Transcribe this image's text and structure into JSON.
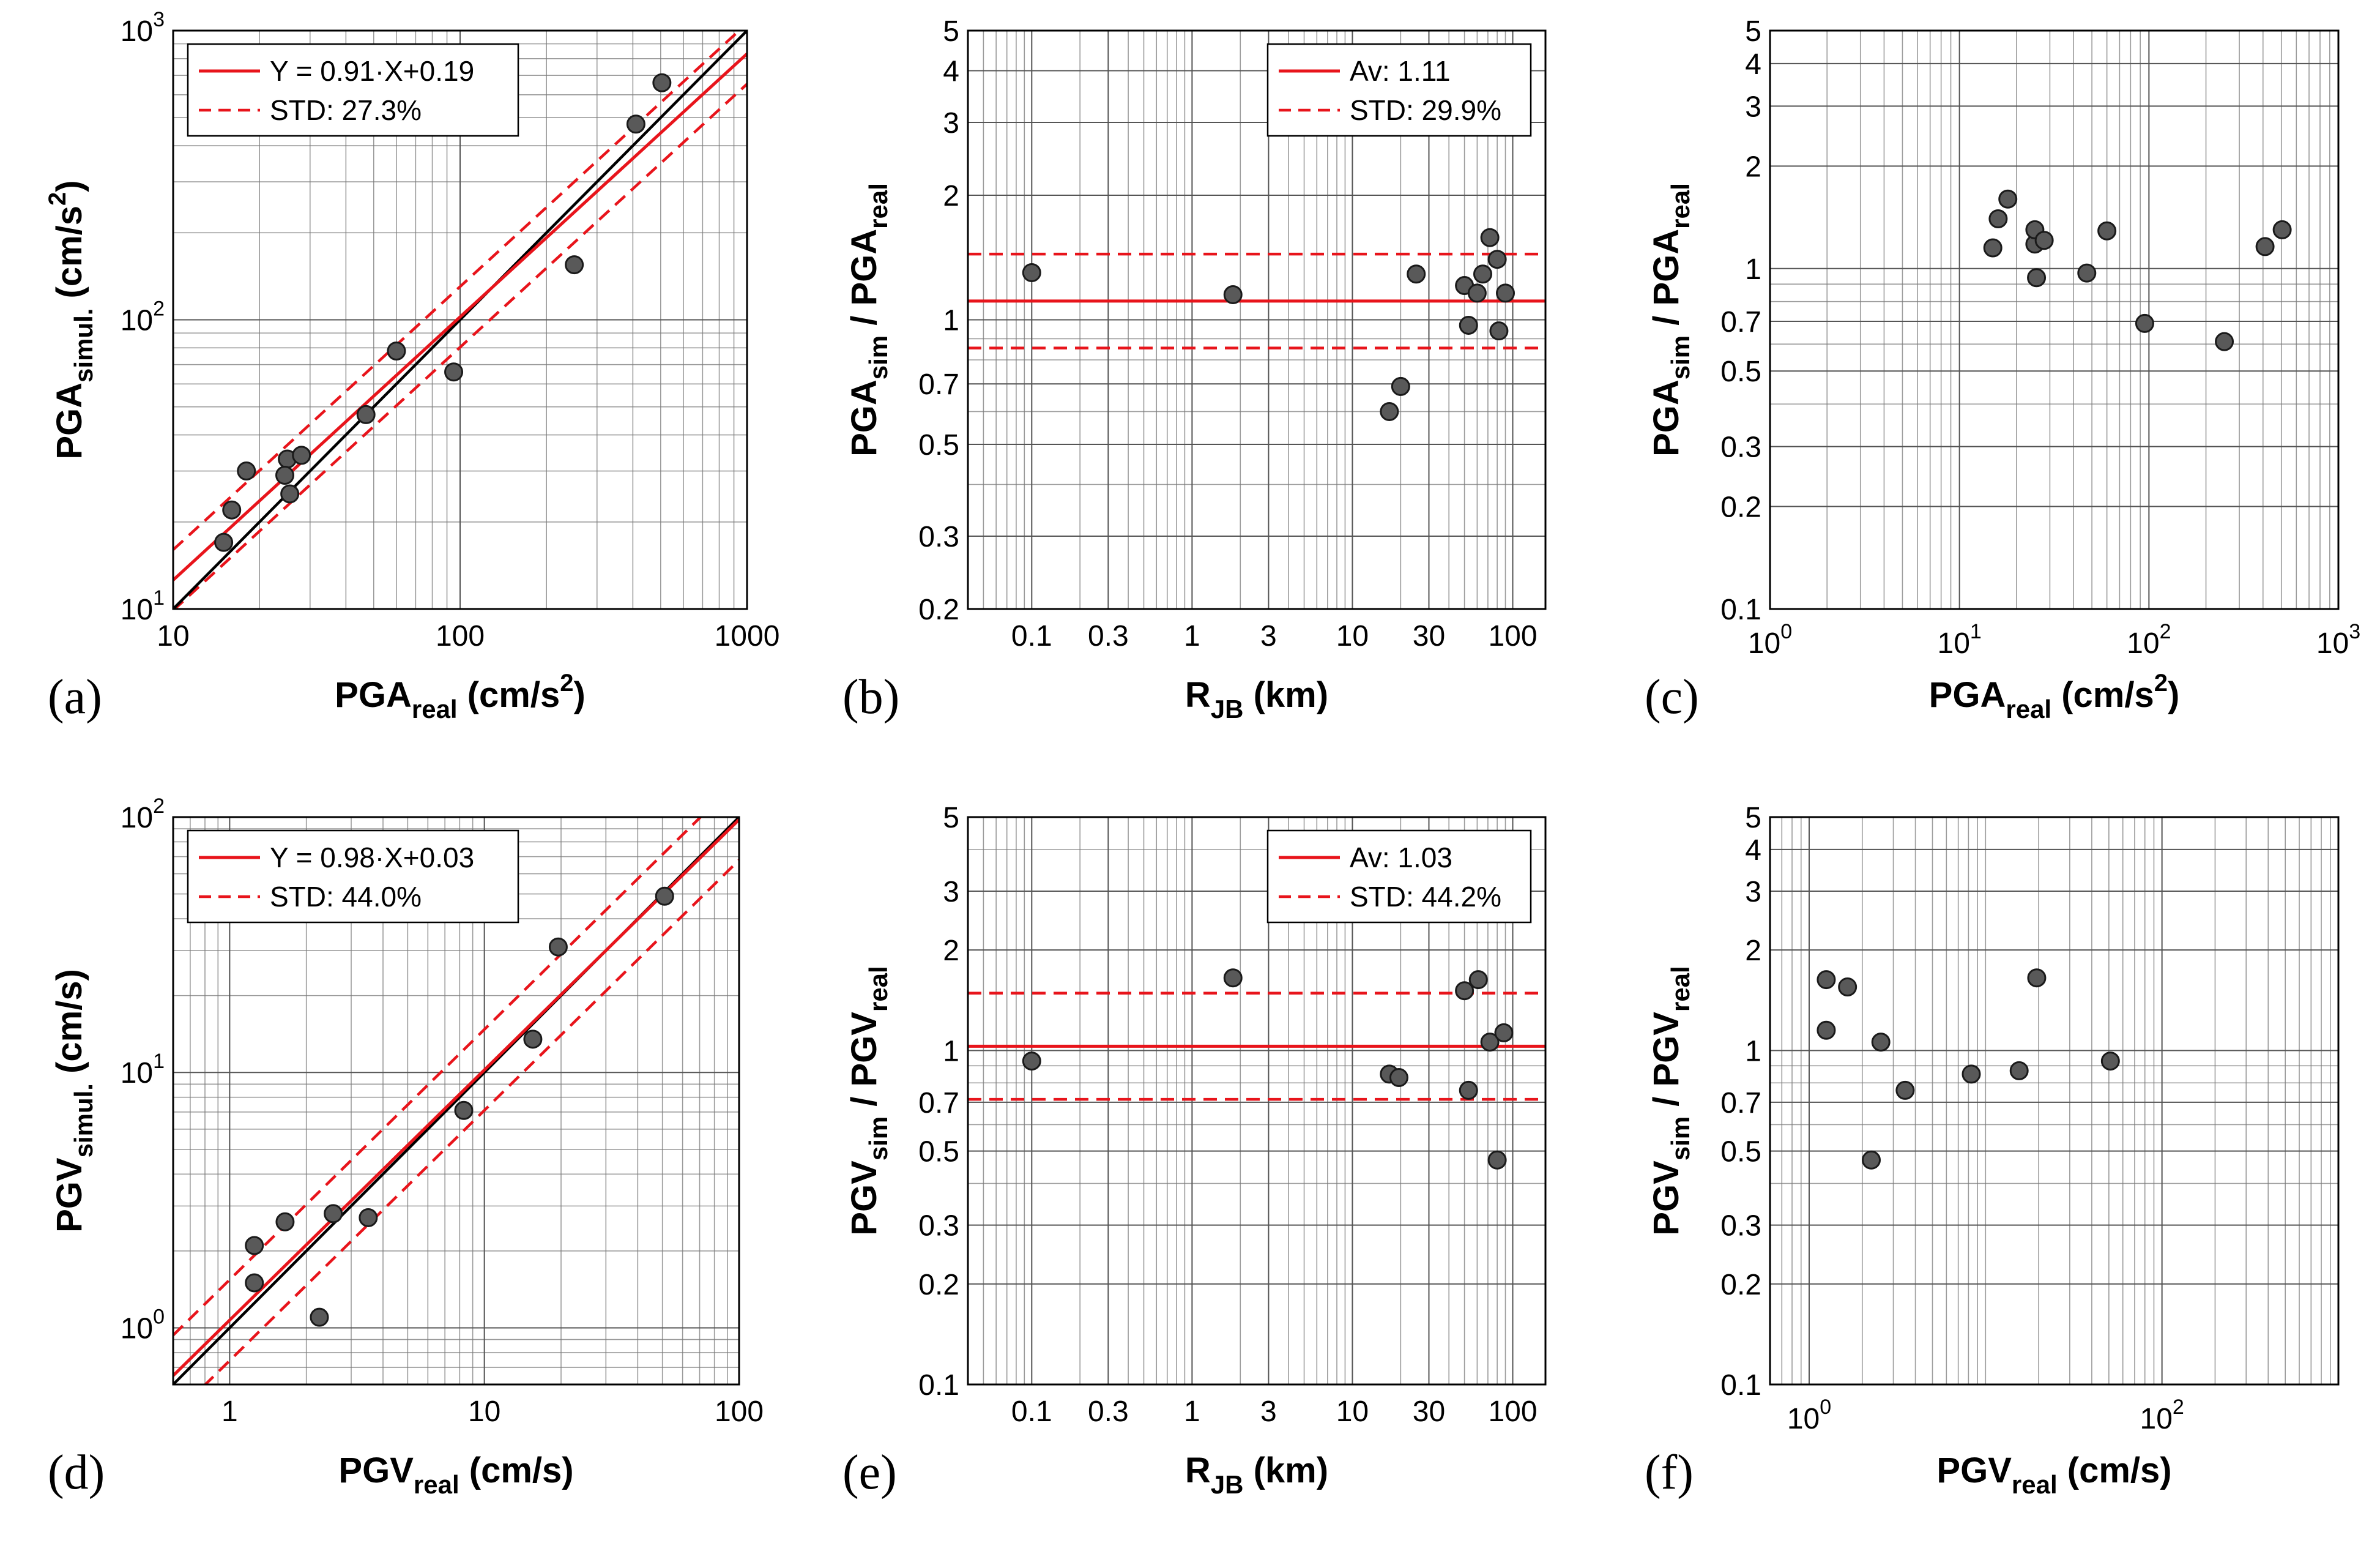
{
  "chart_data": [
    {
      "id": "a",
      "panel_label": "(a)",
      "type": "scatter",
      "mode": "fit",
      "x_scale": "log",
      "y_scale": "log",
      "xlim": [
        10,
        1000
      ],
      "ylim": [
        10,
        1000
      ],
      "x_ticks": [
        10,
        100,
        1000
      ],
      "x_tick_labels": [
        "10",
        "100",
        "1000"
      ],
      "y_ticks": [
        10,
        100,
        1000
      ],
      "y_tick_labels": [
        {
          "b": "10",
          "e": "1"
        },
        {
          "b": "10",
          "e": "2"
        },
        {
          "b": "10",
          "e": "3"
        }
      ],
      "xlabel": {
        "main": "PGA",
        "sub": "real",
        "rest": " (cm/s",
        "sup": "2",
        "end": ")"
      },
      "ylabel": {
        "main": "PGA",
        "sub": "simul.",
        "rest": "  (cm/s",
        "sup": "2",
        "end": ")"
      },
      "legend": {
        "position": "top-left",
        "fit": "Y = 0.91·X+0.19",
        "std": "STD: 27.3%"
      },
      "fit": {
        "a": 0.91,
        "b": 0.19,
        "std_factor": 1.273
      },
      "one_to_one": true,
      "points": [
        [
          15,
          17
        ],
        [
          16,
          22
        ],
        [
          18,
          30
        ],
        [
          25,
          33
        ],
        [
          24.5,
          29
        ],
        [
          25.5,
          25
        ],
        [
          28,
          34
        ],
        [
          47,
          47
        ],
        [
          60,
          78
        ],
        [
          95,
          66
        ],
        [
          250,
          155
        ],
        [
          410,
          475
        ],
        [
          505,
          660
        ]
      ]
    },
    {
      "id": "b",
      "panel_label": "(b)",
      "type": "scatter",
      "mode": "ratio",
      "x_scale": "log",
      "y_scale": "log",
      "xlim": [
        0.04,
        160
      ],
      "ylim": [
        0.2,
        5
      ],
      "x_ticks": [
        0.1,
        0.3,
        1,
        3,
        10,
        30,
        100
      ],
      "x_tick_labels": [
        "0.1",
        "0.3",
        "1",
        "3",
        "10",
        "30",
        "100"
      ],
      "y_ticks": [
        0.2,
        0.3,
        0.5,
        0.7,
        1,
        2,
        3,
        4,
        5
      ],
      "y_tick_labels": [
        "0.2",
        "0.3",
        "0.5",
        "0.7",
        "1",
        "2",
        "3",
        "4",
        "5"
      ],
      "xlabel": {
        "main": "R",
        "sub": "JB",
        "rest": " (km)"
      },
      "ylabel": {
        "main": "PGA",
        "sub": "sim",
        "rest": " / PGA",
        "sub2": "real"
      },
      "legend": {
        "position": "top-right",
        "fit": "Av:  1.11",
        "std": "STD: 29.9%"
      },
      "average": 1.11,
      "std_factor": 1.299,
      "points": [
        [
          0.1,
          1.3
        ],
        [
          1.8,
          1.15
        ],
        [
          17,
          0.6
        ],
        [
          20,
          0.69
        ],
        [
          25,
          1.29
        ],
        [
          50,
          1.21
        ],
        [
          53,
          0.97
        ],
        [
          60,
          1.16
        ],
        [
          65,
          1.29
        ],
        [
          72,
          1.58
        ],
        [
          80,
          1.4
        ],
        [
          82,
          0.94
        ],
        [
          90,
          1.16
        ]
      ]
    },
    {
      "id": "c",
      "panel_label": "(c)",
      "type": "scatter",
      "mode": "ratio_plain",
      "x_scale": "log",
      "y_scale": "log",
      "xlim": [
        1,
        1000
      ],
      "ylim": [
        0.1,
        5
      ],
      "x_ticks": [
        1,
        10,
        100,
        1000
      ],
      "x_tick_labels": [
        {
          "b": "10",
          "e": "0"
        },
        {
          "b": "10",
          "e": "1"
        },
        {
          "b": "10",
          "e": "2"
        },
        {
          "b": "10",
          "e": "3"
        }
      ],
      "y_ticks": [
        0.1,
        0.2,
        0.3,
        0.5,
        0.7,
        1,
        2,
        3,
        4,
        5
      ],
      "y_tick_labels": [
        "0.1",
        "0.2",
        "0.3",
        "0.5",
        "0.7",
        "1",
        "2",
        "3",
        "4",
        "5"
      ],
      "xlabel": {
        "main": "PGA",
        "sub": "real",
        "rest": " (cm/s",
        "sup": "2",
        "end": ")"
      },
      "ylabel": {
        "main": "PGA",
        "sub": "sim",
        "rest": " / PGA",
        "sub2": "real"
      },
      "points": [
        [
          15,
          1.15
        ],
        [
          16,
          1.4
        ],
        [
          18,
          1.6
        ],
        [
          25,
          1.18
        ],
        [
          25,
          1.3
        ],
        [
          25.5,
          0.94
        ],
        [
          28,
          1.21
        ],
        [
          47,
          0.97
        ],
        [
          60,
          1.29
        ],
        [
          95,
          0.69
        ],
        [
          250,
          0.61
        ],
        [
          410,
          1.16
        ],
        [
          505,
          1.3
        ]
      ]
    },
    {
      "id": "d",
      "panel_label": "(d)",
      "type": "scatter",
      "mode": "fit",
      "x_scale": "log",
      "y_scale": "log",
      "xlim": [
        0.6,
        100
      ],
      "ylim": [
        0.6,
        100
      ],
      "x_ticks": [
        1,
        10,
        100
      ],
      "x_tick_labels": [
        "1",
        "10",
        "100"
      ],
      "y_ticks": [
        1,
        10,
        100
      ],
      "y_tick_labels": [
        {
          "b": "10",
          "e": "0"
        },
        {
          "b": "10",
          "e": "1"
        },
        {
          "b": "10",
          "e": "2"
        }
      ],
      "xlabel": {
        "main": "PGV",
        "sub": "real",
        "rest": " (cm/s)"
      },
      "ylabel": {
        "main": "PGV",
        "sub": "simul.",
        "rest": "  (cm/s)"
      },
      "legend": {
        "position": "top-left",
        "fit": "Y = 0.98·X+0.03",
        "std": "STD: 44.0%"
      },
      "fit": {
        "a": 0.98,
        "b": 0.03,
        "std_factor": 1.44
      },
      "one_to_one": true,
      "points": [
        [
          1.25,
          2.1
        ],
        [
          1.25,
          1.5
        ],
        [
          1.65,
          2.6
        ],
        [
          2.25,
          1.1
        ],
        [
          2.55,
          2.8
        ],
        [
          3.5,
          2.7
        ],
        [
          8.3,
          7.1
        ],
        [
          15.5,
          13.5
        ],
        [
          19.5,
          31
        ],
        [
          51,
          49
        ]
      ]
    },
    {
      "id": "e",
      "panel_label": "(e)",
      "type": "scatter",
      "mode": "ratio",
      "x_scale": "log",
      "y_scale": "log",
      "xlim": [
        0.04,
        160
      ],
      "ylim": [
        0.1,
        5
      ],
      "x_ticks": [
        0.1,
        0.3,
        1,
        3,
        10,
        30,
        100
      ],
      "x_tick_labels": [
        "0.1",
        "0.3",
        "1",
        "3",
        "10",
        "30",
        "100"
      ],
      "y_ticks": [
        0.1,
        0.2,
        0.3,
        0.5,
        0.7,
        1,
        2,
        3,
        5
      ],
      "y_tick_labels": [
        "0.1",
        "0.2",
        "0.3",
        "0.5",
        "0.7",
        "1",
        "2",
        "3",
        "5"
      ],
      "xlabel": {
        "main": "R",
        "sub": "JB",
        "rest": " (km)"
      },
      "ylabel": {
        "main": "PGV",
        "sub": "sim",
        "rest": " / PGV",
        "sub2": "real"
      },
      "legend": {
        "position": "top-right",
        "fit": "Av:  1.03",
        "std": "STD: 44.2%"
      },
      "average": 1.03,
      "std_factor": 1.442,
      "points": [
        [
          0.1,
          0.93
        ],
        [
          1.8,
          1.65
        ],
        [
          17,
          0.85
        ],
        [
          19.5,
          0.83
        ],
        [
          50,
          1.51
        ],
        [
          53,
          0.76
        ],
        [
          61,
          1.63
        ],
        [
          72,
          1.06
        ],
        [
          80,
          0.47
        ],
        [
          88,
          1.13
        ]
      ]
    },
    {
      "id": "f",
      "panel_label": "(f)",
      "type": "scatter",
      "mode": "ratio_plain",
      "x_scale": "log",
      "y_scale": "log",
      "xlim": [
        0.6,
        1000
      ],
      "ylim": [
        0.1,
        5
      ],
      "x_ticks": [
        1,
        100
      ],
      "x_tick_labels": [
        {
          "b": "10",
          "e": "0"
        },
        {
          "b": "10",
          "e": "2"
        }
      ],
      "y_ticks": [
        0.1,
        0.2,
        0.3,
        0.5,
        0.7,
        1,
        2,
        3,
        4,
        5
      ],
      "y_tick_labels": [
        "0.1",
        "0.2",
        "0.3",
        "0.5",
        "0.7",
        "1",
        "2",
        "3",
        "4",
        "5"
      ],
      "xlabel": {
        "main": "PGV",
        "sub": "real",
        "rest": " (cm/s)"
      },
      "ylabel": {
        "main": "PGV",
        "sub": "sim",
        "rest": " / PGV",
        "sub2": "real"
      },
      "points": [
        [
          1.25,
          1.63
        ],
        [
          1.25,
          1.15
        ],
        [
          1.65,
          1.55
        ],
        [
          2.25,
          0.47
        ],
        [
          2.55,
          1.06
        ],
        [
          3.5,
          0.76
        ],
        [
          8.3,
          0.85
        ],
        [
          15.5,
          0.87
        ],
        [
          19.5,
          1.65
        ],
        [
          51,
          0.93
        ]
      ]
    }
  ],
  "colors": {
    "fit_line": "#e8141b",
    "one_to_one": "#000000",
    "marker_fill": "#595959",
    "marker_edge": "#1a1a1a",
    "grid": "#7a7a7a",
    "axis": "#000000"
  }
}
